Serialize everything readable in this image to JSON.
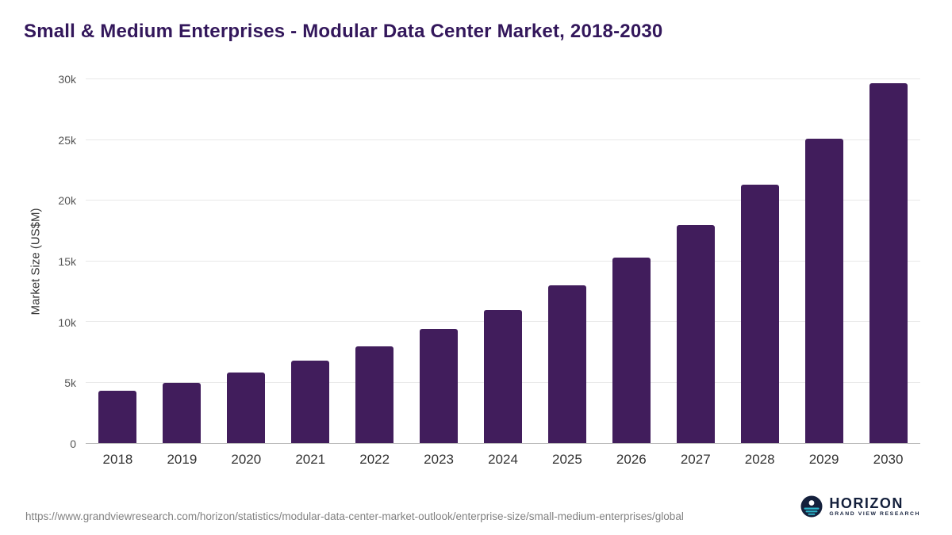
{
  "title": "Small & Medium Enterprises - Modular Data Center Market, 2018-2030",
  "footer": {
    "source_url": "https://www.grandviewresearch.com/horizon/statistics/modular-data-center-market-outlook/enterprise-size/small-medium-enterprises/global"
  },
  "logo": {
    "name": "HORIZON",
    "subtitle": "GRAND VIEW RESEARCH",
    "icon": "horizon-circle-waves-icon",
    "navy": "#14203c",
    "teal": "#2cb3c8"
  },
  "chart_data": {
    "type": "bar",
    "title": "Small & Medium Enterprises - Modular Data Center Market, 2018-2030",
    "xlabel": "",
    "ylabel": "Market Size (US$M)",
    "categories": [
      "2018",
      "2019",
      "2020",
      "2021",
      "2022",
      "2023",
      "2024",
      "2025",
      "2026",
      "2027",
      "2028",
      "2029",
      "2030"
    ],
    "values": [
      4300,
      5000,
      5800,
      6800,
      8000,
      9400,
      11000,
      13000,
      15300,
      18000,
      21300,
      25100,
      29700
    ],
    "ylim": [
      0,
      30000
    ],
    "yticks": [
      {
        "value": 0,
        "label": "0"
      },
      {
        "value": 5000,
        "label": "5k"
      },
      {
        "value": 10000,
        "label": "10k"
      },
      {
        "value": 15000,
        "label": "15k"
      },
      {
        "value": 20000,
        "label": "20k"
      },
      {
        "value": 25000,
        "label": "25k"
      },
      {
        "value": 30000,
        "label": "30k"
      }
    ],
    "grid": true,
    "legend": "none",
    "bar_color": "#411d5c",
    "title_color": "#33175b",
    "gridline_color": "#e8e8e8"
  }
}
